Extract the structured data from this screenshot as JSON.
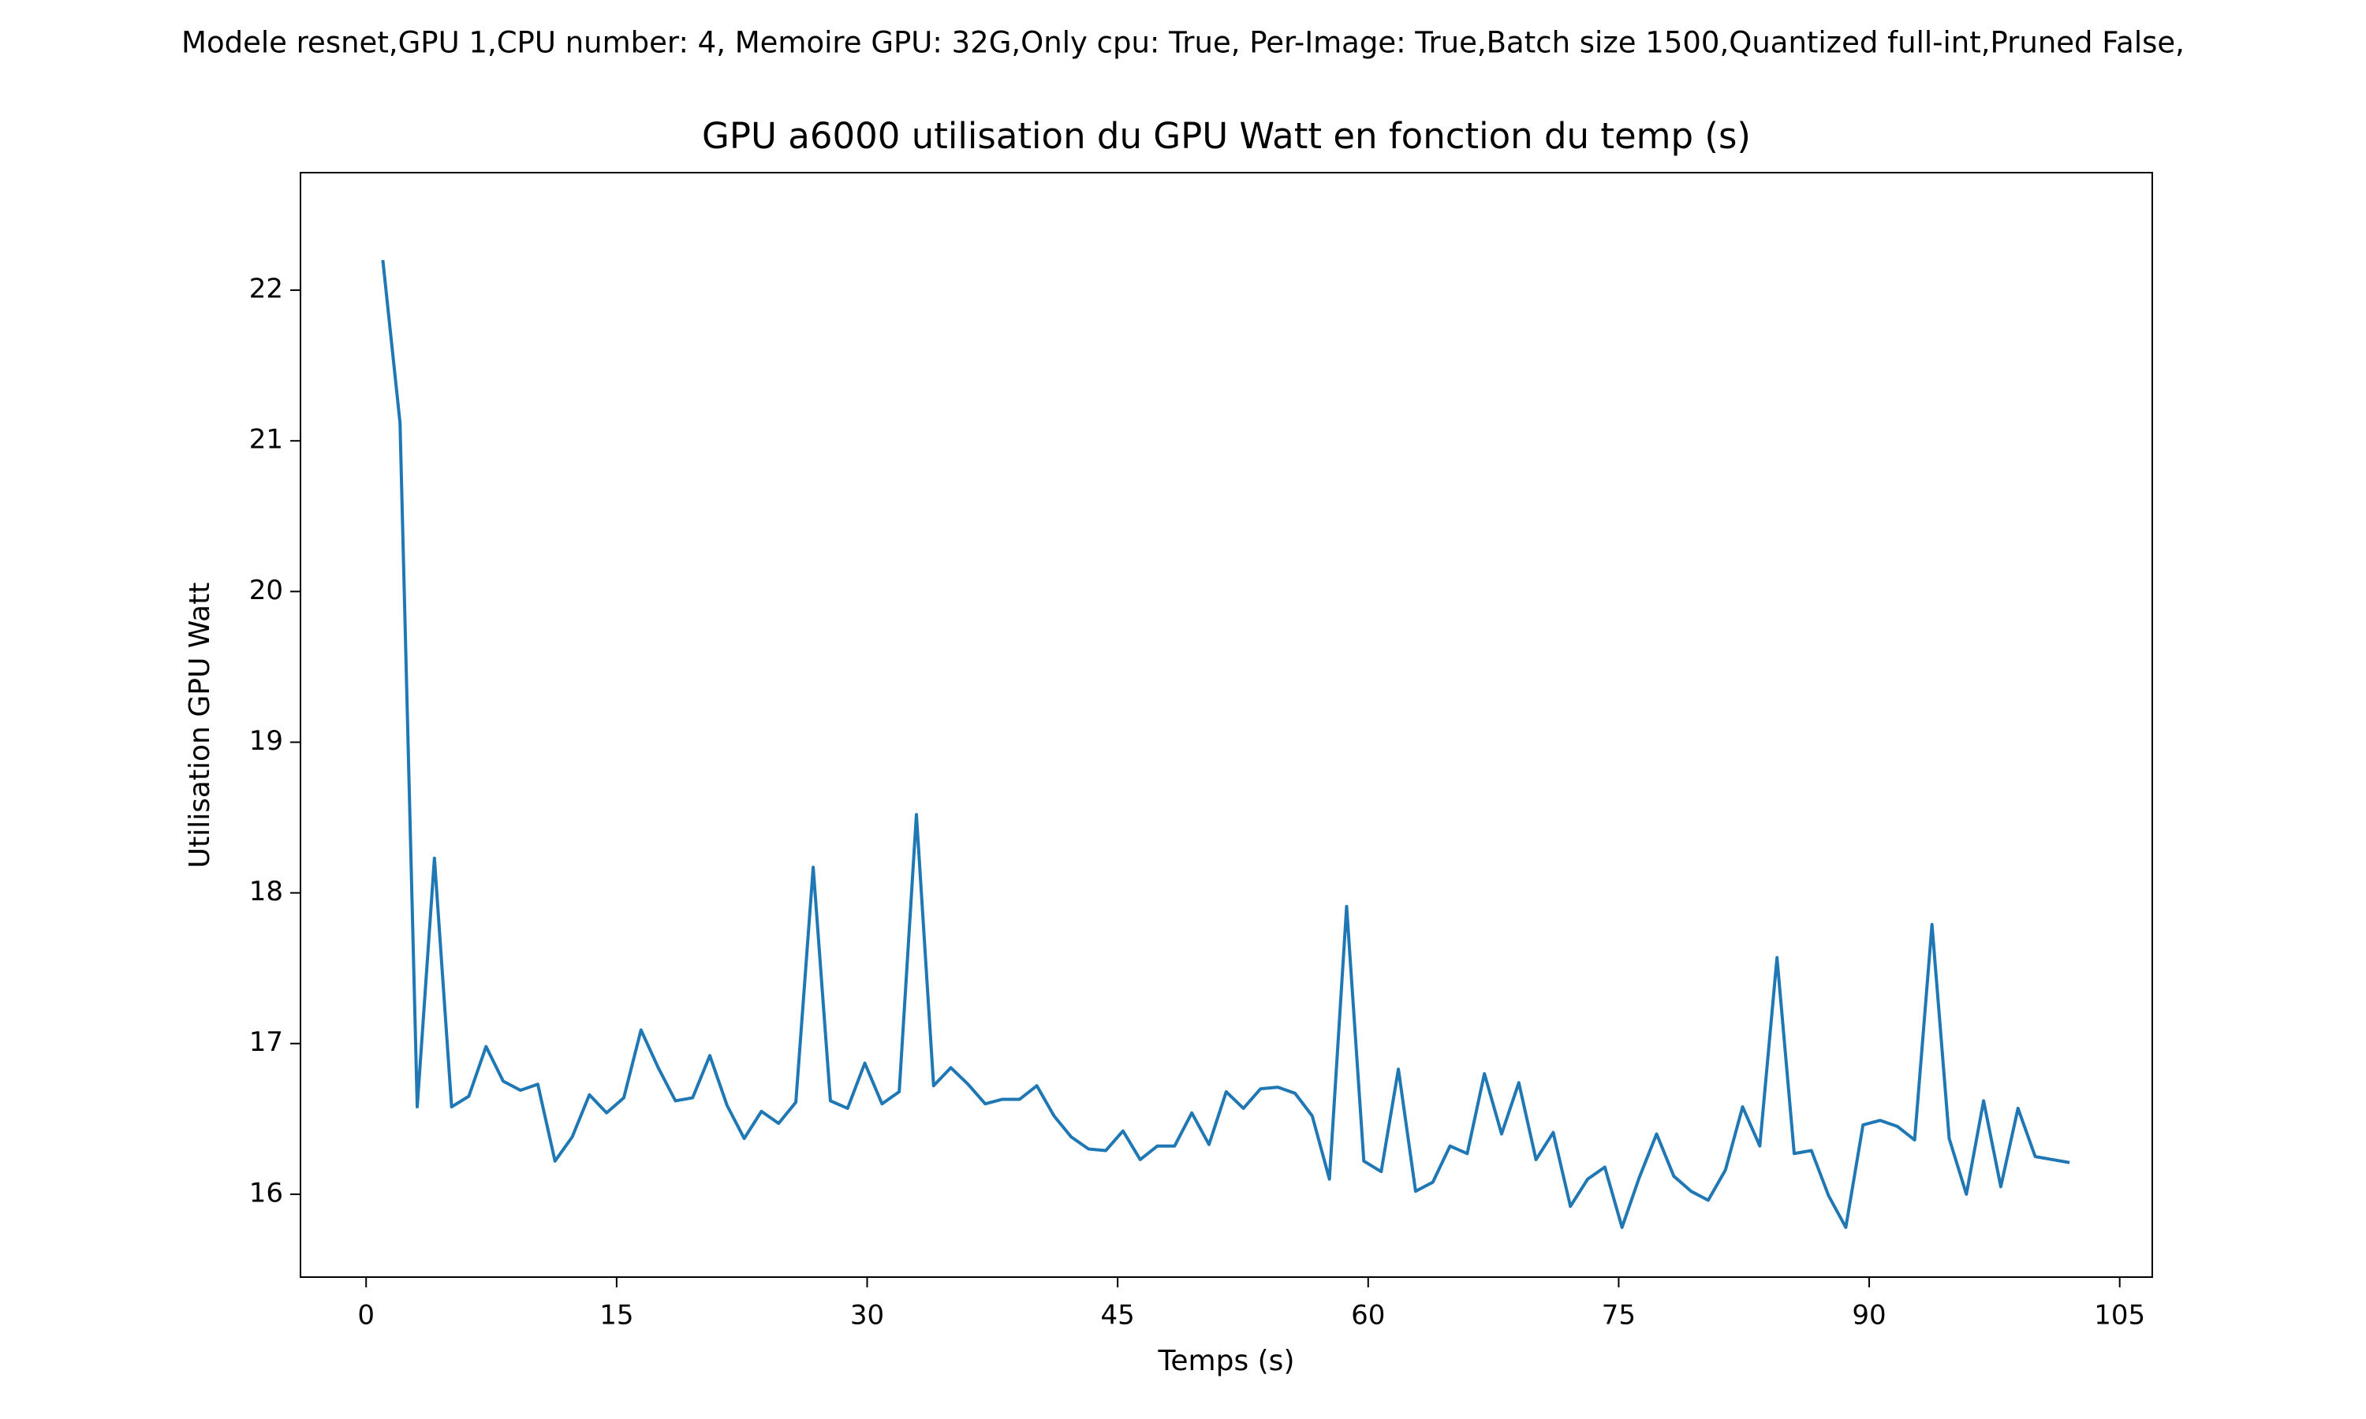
{
  "chart_data": {
    "type": "line",
    "suptitle": "Modele resnet,GPU 1,CPU number: 4, Memoire GPU: 32G,Only cpu: True, Per-Image: True,Batch size 1500,Quantized full-int,Pruned False,",
    "title": "GPU a6000 utilisation du GPU Watt en fonction du temp (s)",
    "xlabel": "Temps (s)",
    "ylabel": "Utilisation GPU Watt",
    "x": [
      1.0,
      2.03,
      3.06,
      4.09,
      5.12,
      6.15,
      7.18,
      8.21,
      9.24,
      10.28,
      11.31,
      12.34,
      13.37,
      14.4,
      15.43,
      16.46,
      17.49,
      18.52,
      19.55,
      20.58,
      21.61,
      22.64,
      23.67,
      24.7,
      25.73,
      26.77,
      27.8,
      28.83,
      29.86,
      30.89,
      31.92,
      32.95,
      33.98,
      35.01,
      36.04,
      37.07,
      38.1,
      39.13,
      40.16,
      41.19,
      42.22,
      43.26,
      44.29,
      45.32,
      46.35,
      47.38,
      48.41,
      49.44,
      50.47,
      51.5,
      52.53,
      53.56,
      54.59,
      55.62,
      56.65,
      57.68,
      58.71,
      59.74,
      60.78,
      61.81,
      62.84,
      63.87,
      64.9,
      65.93,
      66.96,
      67.99,
      69.02,
      70.05,
      71.08,
      72.11,
      73.14,
      74.17,
      75.2,
      76.23,
      77.27,
      78.3,
      79.33,
      80.36,
      81.39,
      82.42,
      83.45,
      84.48,
      85.51,
      86.54,
      87.57,
      88.6,
      89.63,
      90.66,
      91.69,
      92.72,
      93.76,
      94.79,
      95.82,
      96.85,
      97.88,
      98.91,
      99.94,
      100.97,
      102.0
    ],
    "series": [
      {
        "color": "#1f77b4",
        "values": [
          22.2,
          21.12,
          16.58,
          18.23,
          16.58,
          16.65,
          16.98,
          16.75,
          16.69,
          16.73,
          16.22,
          16.38,
          16.66,
          16.54,
          16.64,
          17.09,
          16.84,
          16.62,
          16.64,
          16.92,
          16.59,
          16.37,
          16.55,
          16.47,
          16.61,
          18.17,
          16.62,
          16.57,
          16.87,
          16.6,
          16.68,
          18.52,
          16.72,
          16.84,
          16.73,
          16.6,
          16.63,
          16.63,
          16.72,
          16.52,
          16.38,
          16.3,
          16.29,
          16.42,
          16.23,
          16.32,
          16.32,
          16.54,
          16.33,
          16.68,
          16.57,
          16.7,
          16.71,
          16.67,
          16.52,
          16.1,
          17.91,
          16.22,
          16.15,
          16.83,
          16.02,
          16.08,
          16.32,
          16.27,
          16.8,
          16.4,
          16.74,
          16.23,
          16.41,
          15.92,
          16.1,
          16.18,
          15.78,
          16.11,
          16.4,
          16.12,
          16.02,
          15.96,
          16.16,
          16.58,
          16.32,
          17.57,
          16.27,
          16.29,
          15.99,
          15.78,
          16.46,
          16.49,
          16.45,
          16.36,
          17.79,
          16.37,
          16.0,
          16.62,
          16.05,
          16.57,
          16.25,
          16.23,
          16.21
        ]
      }
    ],
    "xlim": [
      -3.93,
      106.95
    ],
    "ylim": [
      15.45,
      22.78
    ],
    "xticks": [
      0,
      15,
      30,
      45,
      60,
      75,
      90,
      105
    ],
    "yticks": [
      16,
      17,
      18,
      19,
      20,
      21,
      22
    ]
  }
}
